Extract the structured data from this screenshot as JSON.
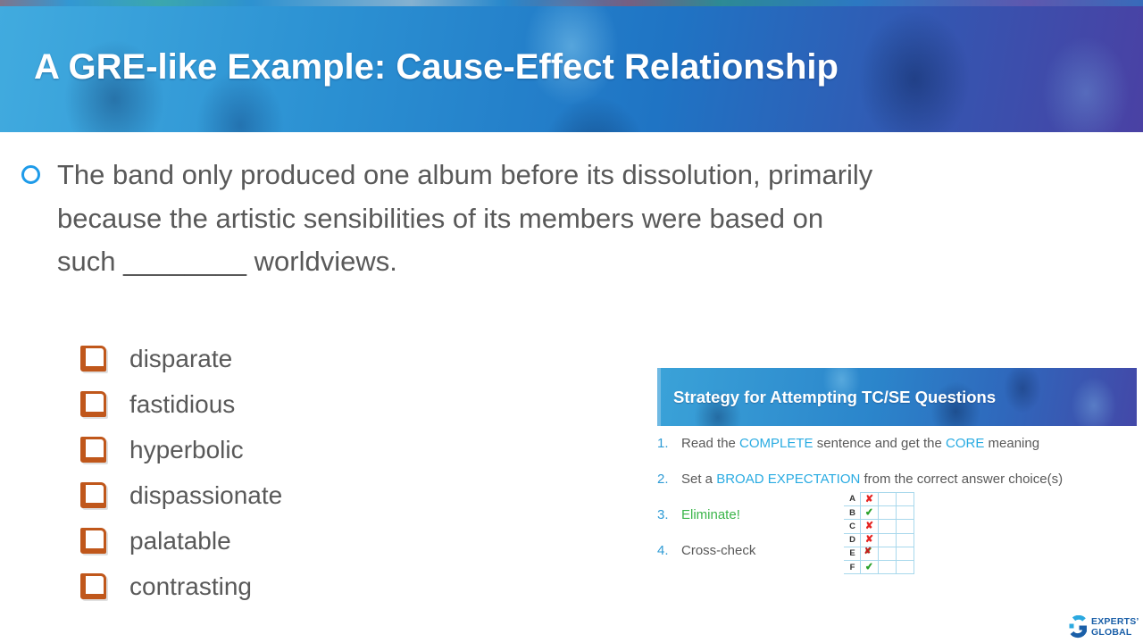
{
  "slide": {
    "title": "A GRE-like Example: Cause-Effect Relationship"
  },
  "question": {
    "lines": [
      "The band only produced one album before its dissolution, primarily",
      "because the artistic sensibilities of its members were based on",
      "such ________ worldviews."
    ]
  },
  "options": [
    "disparate",
    "fastidious",
    "hyperbolic",
    "dispassionate",
    "palatable",
    "contrasting"
  ],
  "strategy": {
    "title": "Strategy for Attempting TC/SE Questions",
    "items": [
      {
        "number": "1.",
        "segments": [
          {
            "t": "Read the ",
            "c": "gray"
          },
          {
            "t": "COMPLETE",
            "c": "blue"
          },
          {
            "t": " sentence and get the ",
            "c": "gray"
          },
          {
            "t": "CORE",
            "c": "blue"
          },
          {
            "t": " meaning",
            "c": "gray"
          }
        ]
      },
      {
        "number": "2.",
        "segments": [
          {
            "t": "Set a ",
            "c": "gray"
          },
          {
            "t": "BROAD EXPECTATION",
            "c": "blue"
          },
          {
            "t": " from the correct answer choice(s)",
            "c": "gray"
          }
        ]
      },
      {
        "number": "3.",
        "segments": [
          {
            "t": "Eliminate!",
            "c": "green"
          }
        ]
      },
      {
        "number": "4.",
        "segments": [
          {
            "t": "Cross-check",
            "c": "gray"
          }
        ]
      }
    ]
  },
  "grid": {
    "rows": [
      {
        "letter": "A",
        "mark": "x"
      },
      {
        "letter": "B",
        "mark": "check"
      },
      {
        "letter": "C",
        "mark": "x"
      },
      {
        "letter": "D",
        "mark": "x"
      },
      {
        "letter": "E",
        "mark": "x_over_check"
      },
      {
        "letter": "F",
        "mark": "check"
      }
    ],
    "glyphs": {
      "x": "✘",
      "check": "✔"
    },
    "empty_columns": 2
  },
  "logo": {
    "line1": "EXPERTS’",
    "line2": "GLOBAL"
  },
  "colors": {
    "gray": "#595959",
    "blue": "#29ABE2",
    "green": "#3BB54A",
    "num_blue": "#2E9BD5",
    "orange": "#C0571B",
    "red": "#E52421",
    "check_green": "#2AA12A",
    "logo_dark_blue": "#1A5FA8",
    "logo_light_blue": "#2BA9E0"
  }
}
